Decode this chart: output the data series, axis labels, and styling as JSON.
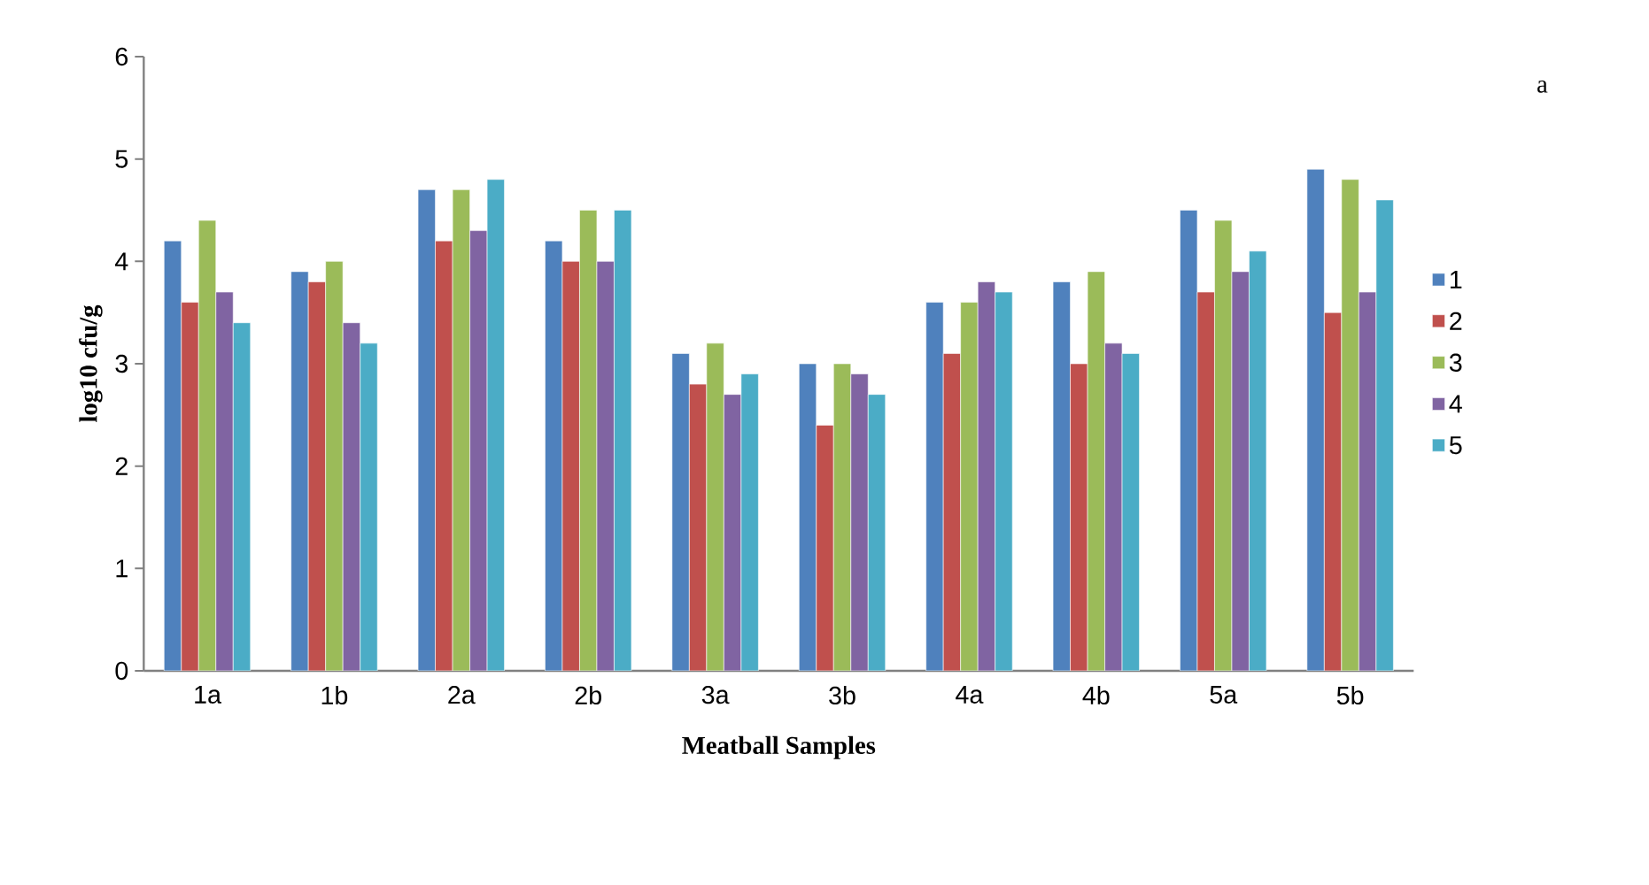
{
  "chart_data": {
    "type": "bar",
    "xlabel": "Meatball Samples",
    "ylabel": "log10 cfu/g",
    "annotations": [
      "a"
    ],
    "categories": [
      "1a",
      "1b",
      "2a",
      "2b",
      "3a",
      "3b",
      "4a",
      "4b",
      "5a",
      "5b"
    ],
    "series": [
      {
        "name": "1",
        "color": "#4f81bd",
        "values": [
          4.2,
          3.9,
          4.7,
          4.2,
          3.1,
          3.0,
          3.6,
          3.8,
          4.5,
          4.9
        ]
      },
      {
        "name": "2",
        "color": "#c0504d",
        "values": [
          3.6,
          3.8,
          4.2,
          4.0,
          2.8,
          2.4,
          3.1,
          3.0,
          3.7,
          3.5
        ]
      },
      {
        "name": "3",
        "color": "#9bbb59",
        "values": [
          4.4,
          4.0,
          4.7,
          4.5,
          3.2,
          3.0,
          3.6,
          3.9,
          4.4,
          4.8
        ]
      },
      {
        "name": "4",
        "color": "#8064a2",
        "values": [
          3.7,
          3.4,
          4.3,
          4.0,
          2.7,
          2.9,
          3.8,
          3.2,
          3.9,
          3.7
        ]
      },
      {
        "name": "5",
        "color": "#4bacc6",
        "values": [
          3.4,
          3.2,
          4.8,
          4.5,
          2.9,
          2.7,
          3.7,
          3.1,
          4.1,
          4.6
        ]
      }
    ],
    "ylim": [
      0,
      6
    ],
    "yticks": [
      0,
      1,
      2,
      3,
      4,
      5,
      6
    ],
    "legend": "right"
  }
}
